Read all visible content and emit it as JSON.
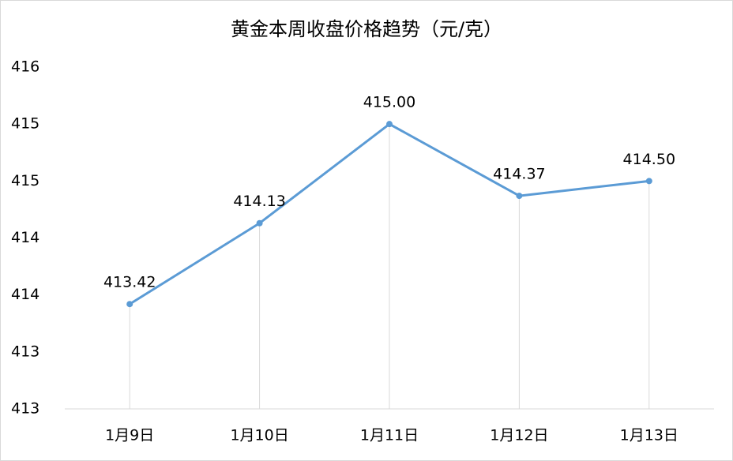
{
  "chart_data": {
    "type": "line",
    "title": "黄金本周收盘价格趋势（元/克）",
    "categories": [
      "1月9日",
      "1月10日",
      "1月11日",
      "1月12日",
      "1月13日"
    ],
    "series": [
      {
        "name": "收盘价格",
        "color": "#5b9bd5",
        "values": [
          413.42,
          414.13,
          415.0,
          414.37,
          414.5
        ],
        "value_labels": [
          "413.42",
          "414.13",
          "415.00",
          "414.37",
          "414.50"
        ]
      }
    ],
    "ylim": [
      412.5,
      415.5
    ],
    "yticks": [
      {
        "value": 412.5,
        "label": "413"
      },
      {
        "value": 413,
        "label": "413"
      },
      {
        "value": 413.5,
        "label": "414"
      },
      {
        "value": 414,
        "label": "414"
      },
      {
        "value": 414.5,
        "label": "415"
      },
      {
        "value": 415,
        "label": "415"
      },
      {
        "value": 415.5,
        "label": "416"
      }
    ],
    "drop_lines": true
  }
}
